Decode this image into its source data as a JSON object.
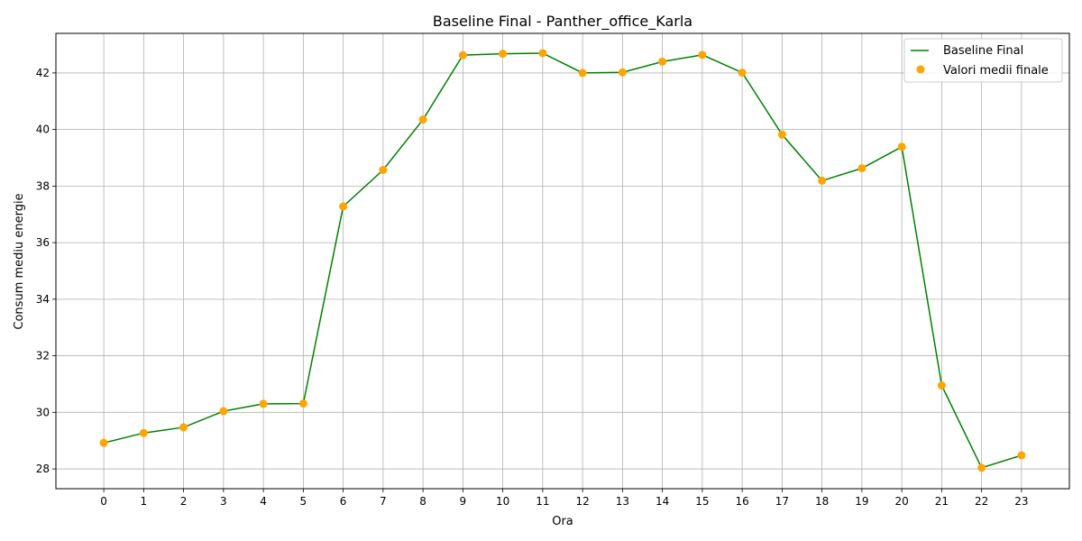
{
  "chart_data": {
    "type": "line",
    "title": "Baseline Final - Panther_office_Karla",
    "xlabel": "Ora",
    "ylabel": "Consum mediu energie",
    "x": [
      0,
      1,
      2,
      3,
      4,
      5,
      6,
      7,
      8,
      9,
      10,
      11,
      12,
      13,
      14,
      15,
      16,
      17,
      18,
      19,
      20,
      21,
      22,
      23
    ],
    "xlim": [
      -1.2,
      24.2
    ],
    "ylim": [
      27.3,
      43.4
    ],
    "yticks": [
      28,
      30,
      32,
      34,
      36,
      38,
      40,
      42
    ],
    "grid": true,
    "legend_position": "top-right",
    "series": [
      {
        "name": "Baseline Final",
        "kind": "line",
        "color": "#008000",
        "values": [
          28.92,
          29.27,
          29.47,
          30.04,
          30.3,
          30.31,
          37.28,
          38.57,
          40.35,
          42.63,
          42.68,
          42.7,
          42.0,
          42.02,
          42.4,
          42.64,
          42.01,
          39.82,
          38.19,
          38.63,
          39.39,
          30.95,
          28.04,
          28.48
        ]
      },
      {
        "name": "Valori medii finale",
        "kind": "scatter",
        "color": "#FFA500",
        "values": [
          28.92,
          29.27,
          29.47,
          30.04,
          30.3,
          30.31,
          37.28,
          38.57,
          40.35,
          42.63,
          42.68,
          42.7,
          42.0,
          42.02,
          42.4,
          42.64,
          42.01,
          39.82,
          38.19,
          38.63,
          39.39,
          30.95,
          28.04,
          28.48
        ]
      }
    ]
  }
}
